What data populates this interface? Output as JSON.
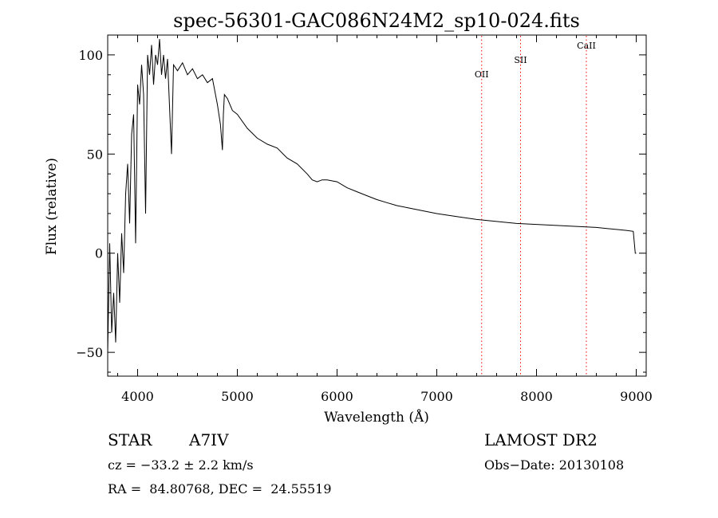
{
  "chart_data": {
    "type": "line",
    "title": "spec-56301-GAC086N24M2_sp10-024.fits",
    "xlabel": "Wavelength (Å)",
    "ylabel": "Flux (relative)",
    "xlim": [
      3700,
      9100
    ],
    "ylim": [
      -62,
      110
    ],
    "x_ticks": [
      4000,
      5000,
      6000,
      7000,
      8000,
      9000
    ],
    "y_ticks": [
      -50,
      0,
      50,
      100
    ],
    "grid": false,
    "line_color": "#000000",
    "series": [
      {
        "x": [
          3700,
          3720,
          3740,
          3760,
          3780,
          3800,
          3820,
          3840,
          3860,
          3880,
          3900,
          3920,
          3940,
          3960,
          3980,
          4000,
          4020,
          4040,
          4060,
          4080,
          4100,
          4120,
          4140,
          4160,
          4180,
          4200,
          4220,
          4240,
          4260,
          4280,
          4300,
          4340,
          4360,
          4400,
          4450,
          4500,
          4550,
          4600,
          4650,
          4700,
          4750,
          4800,
          4830,
          4850,
          4860,
          4870,
          4900,
          4950,
          5000,
          5100,
          5200,
          5300,
          5400,
          5500,
          5600,
          5700,
          5750,
          5800,
          5850,
          5900,
          6000,
          6100,
          6200,
          6300,
          6400,
          6500,
          6600,
          6700,
          6800,
          6900,
          7000,
          7200,
          7400,
          7600,
          7800,
          8000,
          8200,
          8400,
          8600,
          8800,
          8900,
          8970,
          8990,
          9000
        ],
        "y": [
          -50,
          5,
          -40,
          -20,
          -45,
          0,
          -25,
          10,
          -10,
          30,
          45,
          15,
          60,
          70,
          5,
          85,
          75,
          95,
          80,
          20,
          100,
          90,
          105,
          85,
          100,
          95,
          108,
          90,
          100,
          88,
          98,
          50,
          95,
          92,
          96,
          90,
          93,
          88,
          90,
          86,
          88,
          75,
          65,
          52,
          70,
          80,
          78,
          72,
          70,
          63,
          58,
          55,
          53,
          48,
          45,
          40,
          37,
          36,
          37,
          37,
          36,
          33,
          31,
          29,
          27,
          25.5,
          24,
          23,
          22,
          21,
          20,
          18.5,
          17,
          16,
          15,
          14.5,
          14,
          13.5,
          13,
          12,
          11.5,
          11,
          0,
          0
        ]
      }
    ],
    "annotations": [
      {
        "label": "OII",
        "x": 7450
      },
      {
        "label": "SII",
        "x": 7840
      },
      {
        "label": "CaII",
        "x": 8500
      }
    ],
    "annotation_color": "#ff0000"
  },
  "info": {
    "object_type": "STAR",
    "subclass": "A7IV",
    "survey": "LAMOST DR2",
    "cz": "cz = −33.2 ± 2.2 km/s",
    "obs_date": "Obs−Date: 20130108",
    "coords": "RA =  84.80768, DEC =  24.55519"
  }
}
